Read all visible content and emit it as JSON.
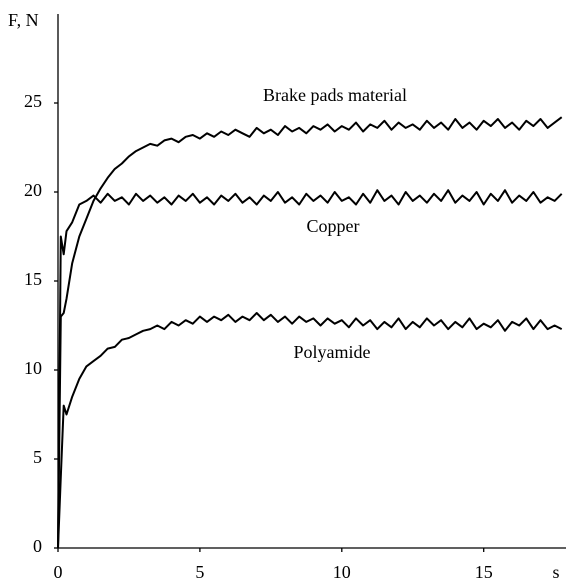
{
  "chart_data": {
    "type": "line",
    "ylabel": "F, N",
    "xlabel": "s",
    "x": [
      0,
      0.1,
      0.2,
      0.3,
      0.5,
      0.75,
      1,
      1.25,
      1.5,
      1.75,
      2,
      2.25,
      2.5,
      2.75,
      3,
      3.25,
      3.5,
      3.75,
      4,
      4.25,
      4.5,
      4.75,
      5,
      5.25,
      5.5,
      5.75,
      6,
      6.25,
      6.5,
      6.75,
      7,
      7.25,
      7.5,
      7.75,
      8,
      8.25,
      8.5,
      8.75,
      9,
      9.25,
      9.5,
      9.75,
      10,
      10.25,
      10.5,
      10.75,
      11,
      11.25,
      11.5,
      11.75,
      12,
      12.25,
      12.5,
      12.75,
      13,
      13.25,
      13.5,
      13.75,
      14,
      14.25,
      14.5,
      14.75,
      15,
      15.25,
      15.5,
      15.75,
      16,
      16.25,
      16.5,
      16.75,
      17,
      17.25,
      17.5,
      17.75
    ],
    "series": [
      {
        "name": "Brake pads material",
        "color": "#000000",
        "values": [
          0,
          13,
          13.2,
          14,
          16,
          17.5,
          18.5,
          19.5,
          20.2,
          20.8,
          21.3,
          21.6,
          22,
          22.3,
          22.5,
          22.7,
          22.6,
          22.9,
          23,
          22.8,
          23.1,
          23.2,
          23,
          23.3,
          23.1,
          23.4,
          23.2,
          23.5,
          23.3,
          23.1,
          23.6,
          23.3,
          23.5,
          23.2,
          23.7,
          23.4,
          23.6,
          23.3,
          23.7,
          23.5,
          23.8,
          23.4,
          23.7,
          23.5,
          23.9,
          23.4,
          23.8,
          23.6,
          24,
          23.5,
          23.9,
          23.6,
          23.8,
          23.5,
          24,
          23.6,
          23.9,
          23.5,
          24.1,
          23.6,
          23.9,
          23.5,
          24,
          23.7,
          24.1,
          23.6,
          23.9,
          23.5,
          24,
          23.7,
          24.1,
          23.6,
          23.9,
          24.2
        ]
      },
      {
        "name": "Copper",
        "color": "#000000",
        "values": [
          0,
          17.5,
          16.5,
          17.8,
          18.3,
          19.3,
          19.5,
          19.8,
          19.4,
          19.9,
          19.5,
          19.7,
          19.3,
          19.9,
          19.5,
          19.8,
          19.4,
          19.7,
          19.3,
          19.8,
          19.5,
          19.9,
          19.4,
          19.7,
          19.3,
          19.8,
          19.5,
          19.9,
          19.4,
          19.7,
          19.3,
          19.8,
          19.5,
          20,
          19.4,
          19.7,
          19.3,
          19.9,
          19.5,
          19.8,
          19.4,
          20,
          19.5,
          19.7,
          19.3,
          19.9,
          19.4,
          20.1,
          19.5,
          19.8,
          19.3,
          20,
          19.5,
          19.8,
          19.4,
          19.9,
          19.5,
          20.1,
          19.4,
          19.8,
          19.5,
          20,
          19.3,
          19.9,
          19.5,
          20.1,
          19.4,
          19.8,
          19.5,
          20,
          19.4,
          19.7,
          19.5,
          19.9
        ]
      },
      {
        "name": "Polyamide",
        "color": "#000000",
        "values": [
          0,
          4,
          8,
          7.5,
          8.5,
          9.5,
          10.2,
          10.5,
          10.8,
          11.2,
          11.3,
          11.7,
          11.8,
          12,
          12.2,
          12.3,
          12.5,
          12.3,
          12.7,
          12.5,
          12.8,
          12.6,
          13,
          12.7,
          13,
          12.8,
          13.1,
          12.7,
          13,
          12.8,
          13.2,
          12.8,
          13.1,
          12.7,
          13,
          12.6,
          13,
          12.7,
          12.9,
          12.5,
          12.9,
          12.6,
          12.8,
          12.4,
          12.9,
          12.5,
          12.8,
          12.3,
          12.7,
          12.4,
          12.9,
          12.3,
          12.7,
          12.4,
          12.9,
          12.5,
          12.8,
          12.3,
          12.7,
          12.4,
          12.9,
          12.3,
          12.6,
          12.4,
          12.8,
          12.2,
          12.7,
          12.5,
          12.9,
          12.3,
          12.8,
          12.3,
          12.5,
          12.3
        ]
      }
    ],
    "xlim": [
      0,
      17.9
    ],
    "xticks": [
      0,
      5,
      10,
      15
    ],
    "ylim": [
      0,
      30
    ],
    "yticks": [
      0,
      5,
      10,
      15,
      20,
      25
    ],
    "grid": false
  }
}
